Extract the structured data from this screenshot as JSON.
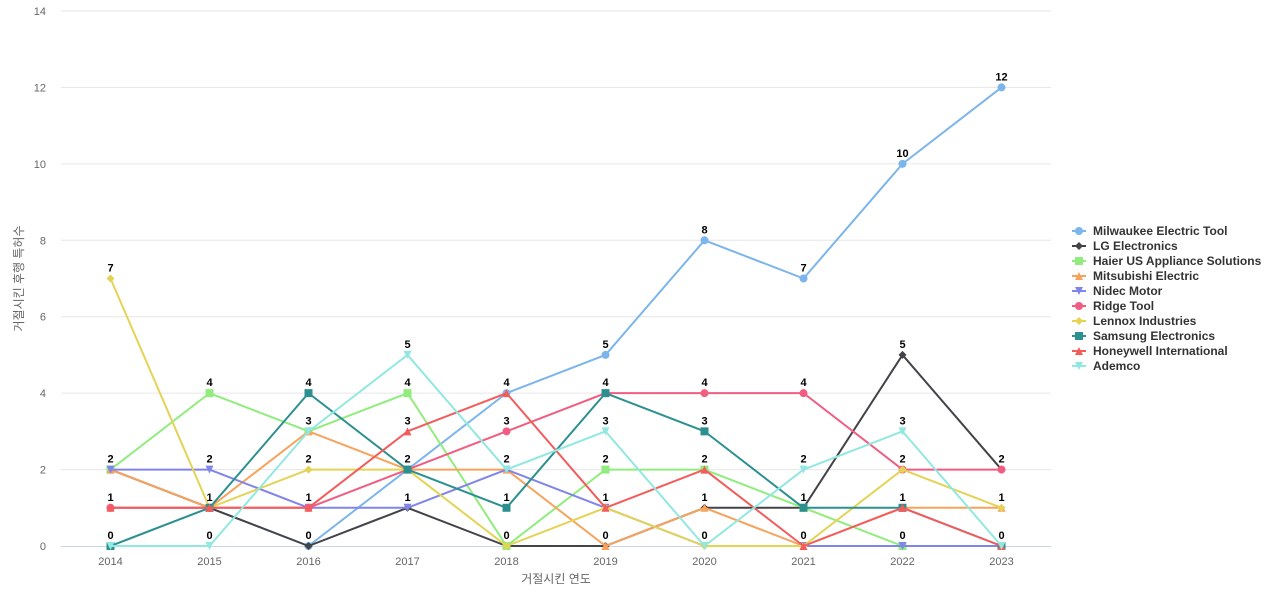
{
  "chart_data": {
    "type": "line",
    "title": "",
    "xlabel": "거절시킨 연도",
    "ylabel": "거절시킨 후행 특허수",
    "x": [
      "2014",
      "2015",
      "2016",
      "2017",
      "2018",
      "2019",
      "2020",
      "2021",
      "2022",
      "2023"
    ],
    "yticks": [
      "0",
      "2",
      "4",
      "6",
      "8",
      "10",
      "12",
      "14"
    ],
    "ylim": [
      0,
      14
    ],
    "grid": true,
    "legend_position": "right",
    "series": [
      {
        "name": "Milwaukee Electric Tool",
        "color": "#7cb5ec",
        "marker": "circle",
        "values": [
          1,
          1,
          0,
          2,
          4,
          5,
          8,
          7,
          10,
          12
        ]
      },
      {
        "name": "LG Electronics",
        "color": "#434348",
        "marker": "diamond",
        "values": [
          2,
          1,
          0,
          1,
          0,
          0,
          1,
          1,
          5,
          2
        ]
      },
      {
        "name": "Haier US Appliance Solutions",
        "color": "#90ed7d",
        "marker": "square",
        "values": [
          2,
          4,
          3,
          4,
          0,
          2,
          2,
          1,
          0,
          0
        ]
      },
      {
        "name": "Mitsubishi Electric",
        "color": "#f7a35c",
        "marker": "triangle",
        "values": [
          2,
          1,
          3,
          2,
          2,
          0,
          1,
          0,
          1,
          1
        ]
      },
      {
        "name": "Nidec Motor",
        "color": "#8085e9",
        "marker": "triangle-down",
        "values": [
          2,
          2,
          1,
          1,
          2,
          1,
          0,
          0,
          0,
          0
        ]
      },
      {
        "name": "Ridge Tool",
        "color": "#f15c80",
        "marker": "circle",
        "values": [
          1,
          1,
          1,
          2,
          3,
          4,
          4,
          4,
          2,
          2
        ]
      },
      {
        "name": "Lennox Industries",
        "color": "#e4d354",
        "marker": "diamond",
        "values": [
          7,
          1,
          2,
          2,
          0,
          1,
          0,
          0,
          2,
          1
        ]
      },
      {
        "name": "Samsung Electronics",
        "color": "#2b908f",
        "marker": "square",
        "values": [
          0,
          1,
          4,
          2,
          1,
          4,
          3,
          1,
          1,
          0
        ]
      },
      {
        "name": "Honeywell International",
        "color": "#f45b5b",
        "marker": "triangle",
        "values": [
          1,
          1,
          1,
          3,
          4,
          1,
          2,
          0,
          1,
          0
        ]
      },
      {
        "name": "Ademco",
        "color": "#91e8e1",
        "marker": "triangle-down",
        "values": [
          0,
          0,
          3,
          5,
          2,
          3,
          0,
          2,
          3,
          0
        ]
      }
    ],
    "data_labels": [
      {
        "text": "7",
        "x": "2014",
        "y": 7
      },
      {
        "text": "2",
        "x": "2014",
        "y": 2
      },
      {
        "text": "1",
        "x": "2014",
        "y": 1
      },
      {
        "text": "0",
        "x": "2014",
        "y": 0
      },
      {
        "text": "4",
        "x": "2015",
        "y": 4
      },
      {
        "text": "2",
        "x": "2015",
        "y": 2
      },
      {
        "text": "1",
        "x": "2015",
        "y": 1
      },
      {
        "text": "0",
        "x": "2015",
        "y": 0
      },
      {
        "text": "4",
        "x": "2016",
        "y": 4
      },
      {
        "text": "3",
        "x": "2016",
        "y": 3
      },
      {
        "text": "2",
        "x": "2016",
        "y": 2
      },
      {
        "text": "1",
        "x": "2016",
        "y": 1
      },
      {
        "text": "0",
        "x": "2016",
        "y": 0
      },
      {
        "text": "5",
        "x": "2017",
        "y": 5
      },
      {
        "text": "4",
        "x": "2017",
        "y": 4
      },
      {
        "text": "3",
        "x": "2017",
        "y": 3
      },
      {
        "text": "2",
        "x": "2017",
        "y": 2
      },
      {
        "text": "1",
        "x": "2017",
        "y": 1
      },
      {
        "text": "4",
        "x": "2018",
        "y": 4
      },
      {
        "text": "3",
        "x": "2018",
        "y": 3
      },
      {
        "text": "2",
        "x": "2018",
        "y": 2
      },
      {
        "text": "1",
        "x": "2018",
        "y": 1
      },
      {
        "text": "0",
        "x": "2018",
        "y": 0
      },
      {
        "text": "5",
        "x": "2019",
        "y": 5
      },
      {
        "text": "4",
        "x": "2019",
        "y": 4
      },
      {
        "text": "3",
        "x": "2019",
        "y": 3
      },
      {
        "text": "2",
        "x": "2019",
        "y": 2
      },
      {
        "text": "1",
        "x": "2019",
        "y": 1
      },
      {
        "text": "0",
        "x": "2019",
        "y": 0
      },
      {
        "text": "8",
        "x": "2020",
        "y": 8
      },
      {
        "text": "4",
        "x": "2020",
        "y": 4
      },
      {
        "text": "3",
        "x": "2020",
        "y": 3
      },
      {
        "text": "2",
        "x": "2020",
        "y": 2
      },
      {
        "text": "1",
        "x": "2020",
        "y": 1
      },
      {
        "text": "0",
        "x": "2020",
        "y": 0
      },
      {
        "text": "7",
        "x": "2021",
        "y": 7
      },
      {
        "text": "4",
        "x": "2021",
        "y": 4
      },
      {
        "text": "2",
        "x": "2021",
        "y": 2
      },
      {
        "text": "1",
        "x": "2021",
        "y": 1
      },
      {
        "text": "0",
        "x": "2021",
        "y": 0
      },
      {
        "text": "10",
        "x": "2022",
        "y": 10
      },
      {
        "text": "5",
        "x": "2022",
        "y": 5
      },
      {
        "text": "3",
        "x": "2022",
        "y": 3
      },
      {
        "text": "2",
        "x": "2022",
        "y": 2
      },
      {
        "text": "1",
        "x": "2022",
        "y": 1
      },
      {
        "text": "0",
        "x": "2022",
        "y": 0
      },
      {
        "text": "12",
        "x": "2023",
        "y": 12
      },
      {
        "text": "2",
        "x": "2023",
        "y": 2
      },
      {
        "text": "1",
        "x": "2023",
        "y": 1
      },
      {
        "text": "0",
        "x": "2023",
        "y": 0
      }
    ]
  }
}
